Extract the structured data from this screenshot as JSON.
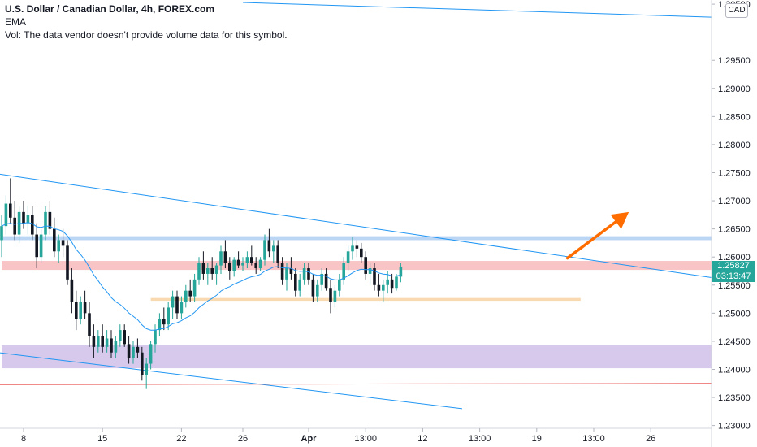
{
  "header": {
    "title": "U.S. Dollar / Canadian Dollar, 4h, FOREX.com",
    "indicator": "EMA",
    "volume_note": "Vol: The data vendor doesn't provide volume data for this symbol."
  },
  "currency_badge": "CAD",
  "last_price": {
    "value": "1.25827",
    "countdown": "03:13:47"
  },
  "colors": {
    "up": "#26a69a",
    "down": "#131722",
    "ema": "#2196f3",
    "trendline": "#2196f3",
    "support_line": "#e53935",
    "arrow": "#ff6d00",
    "zone_blue": "#bbd6f5",
    "zone_red": "#f8c4c6",
    "zone_orange": "#f9d9b0",
    "zone_purple": "#d6c9ec"
  },
  "chart_data": {
    "type": "candlestick",
    "symbol": "USDCAD",
    "timeframe": "4h",
    "ylim": [
      1.2298,
      1.3053
    ],
    "y_ticks": [
      "1.23000",
      "1.23500",
      "1.24000",
      "1.24500",
      "1.25000",
      "1.25500",
      "1.26000",
      "1.26500",
      "1.27000",
      "1.27500",
      "1.28000",
      "1.28500",
      "1.29000",
      "1.29500",
      "1.30500"
    ],
    "x_ticks": [
      {
        "label": "8",
        "i": 5
      },
      {
        "label": "15",
        "i": 23
      },
      {
        "label": "22",
        "i": 41
      },
      {
        "label": "26",
        "i": 55
      },
      {
        "label": "Apr",
        "i": 70
      },
      {
        "label": "13:00",
        "i": 83
      },
      {
        "label": "12",
        "i": 96
      },
      {
        "label": "13:00",
        "i": 109
      },
      {
        "label": "19",
        "i": 122
      },
      {
        "label": "13:00",
        "i": 135
      },
      {
        "label": "26",
        "i": 148
      }
    ],
    "candles": [
      [
        1.263,
        1.2675,
        1.26,
        1.2655
      ],
      [
        1.2655,
        1.271,
        1.264,
        1.2695
      ],
      [
        1.2695,
        1.274,
        1.266,
        1.267
      ],
      [
        1.267,
        1.27,
        1.263,
        1.264
      ],
      [
        1.264,
        1.269,
        1.2625,
        1.268
      ],
      [
        1.268,
        1.27,
        1.265,
        1.266
      ],
      [
        1.266,
        1.269,
        1.264,
        1.2675
      ],
      [
        1.2675,
        1.269,
        1.263,
        1.264
      ],
      [
        1.264,
        1.266,
        1.258,
        1.26
      ],
      [
        1.26,
        1.265,
        1.259,
        1.264
      ],
      [
        1.264,
        1.269,
        1.263,
        1.268
      ],
      [
        1.268,
        1.27,
        1.264,
        1.265
      ],
      [
        1.265,
        1.267,
        1.26,
        1.261
      ],
      [
        1.261,
        1.264,
        1.259,
        1.263
      ],
      [
        1.263,
        1.265,
        1.26,
        1.262
      ],
      [
        1.262,
        1.263,
        1.255,
        1.256
      ],
      [
        1.256,
        1.258,
        1.25,
        1.252
      ],
      [
        1.252,
        1.254,
        1.247,
        1.249
      ],
      [
        1.249,
        1.253,
        1.248,
        1.252
      ],
      [
        1.252,
        1.254,
        1.249,
        1.25
      ],
      [
        1.25,
        1.252,
        1.244,
        1.246
      ],
      [
        1.246,
        1.248,
        1.242,
        1.244
      ],
      [
        1.244,
        1.247,
        1.243,
        1.246
      ],
      [
        1.246,
        1.248,
        1.243,
        1.244
      ],
      [
        1.244,
        1.247,
        1.243,
        1.2455
      ],
      [
        1.2455,
        1.247,
        1.242,
        1.243
      ],
      [
        1.243,
        1.246,
        1.242,
        1.245
      ],
      [
        1.245,
        1.248,
        1.244,
        1.247
      ],
      [
        1.247,
        1.248,
        1.244,
        1.2445
      ],
      [
        1.2445,
        1.246,
        1.241,
        1.242
      ],
      [
        1.242,
        1.245,
        1.241,
        1.244
      ],
      [
        1.244,
        1.2455,
        1.242,
        1.243
      ],
      [
        1.243,
        1.244,
        1.238,
        1.239
      ],
      [
        1.239,
        1.242,
        1.2365,
        1.241
      ],
      [
        1.241,
        1.245,
        1.24,
        1.2445
      ],
      [
        1.2445,
        1.248,
        1.243,
        1.247
      ],
      [
        1.247,
        1.25,
        1.246,
        1.249
      ],
      [
        1.249,
        1.251,
        1.247,
        1.248
      ],
      [
        1.248,
        1.252,
        1.247,
        1.251
      ],
      [
        1.251,
        1.254,
        1.249,
        1.253
      ],
      [
        1.253,
        1.254,
        1.249,
        1.25
      ],
      [
        1.25,
        1.253,
        1.249,
        1.252
      ],
      [
        1.252,
        1.255,
        1.251,
        1.254
      ],
      [
        1.254,
        1.256,
        1.252,
        1.253
      ],
      [
        1.253,
        1.257,
        1.252,
        1.256
      ],
      [
        1.256,
        1.26,
        1.255,
        1.259
      ],
      [
        1.259,
        1.261,
        1.256,
        1.257
      ],
      [
        1.257,
        1.259,
        1.255,
        1.258
      ],
      [
        1.258,
        1.26,
        1.256,
        1.257
      ],
      [
        1.257,
        1.259,
        1.255,
        1.2585
      ],
      [
        1.2585,
        1.262,
        1.257,
        1.261
      ],
      [
        1.261,
        1.263,
        1.258,
        1.259
      ],
      [
        1.259,
        1.26,
        1.256,
        1.2575
      ],
      [
        1.2575,
        1.26,
        1.2565,
        1.2595
      ],
      [
        1.2595,
        1.261,
        1.258,
        1.2585
      ],
      [
        1.2585,
        1.26,
        1.2575,
        1.259
      ],
      [
        1.259,
        1.261,
        1.258,
        1.26
      ],
      [
        1.26,
        1.262,
        1.2585,
        1.259
      ],
      [
        1.259,
        1.26,
        1.257,
        1.258
      ],
      [
        1.258,
        1.26,
        1.2575,
        1.2595
      ],
      [
        1.2595,
        1.264,
        1.2585,
        1.263
      ],
      [
        1.263,
        1.265,
        1.26,
        1.261
      ],
      [
        1.261,
        1.263,
        1.259,
        1.262
      ],
      [
        1.262,
        1.263,
        1.258,
        1.259
      ],
      [
        1.259,
        1.26,
        1.255,
        1.256
      ],
      [
        1.256,
        1.259,
        1.254,
        1.258
      ],
      [
        1.258,
        1.26,
        1.256,
        1.257
      ],
      [
        1.257,
        1.258,
        1.253,
        1.254
      ],
      [
        1.254,
        1.257,
        1.253,
        1.256
      ],
      [
        1.256,
        1.259,
        1.255,
        1.258
      ],
      [
        1.258,
        1.259,
        1.255,
        1.256
      ],
      [
        1.256,
        1.257,
        1.252,
        1.253
      ],
      [
        1.253,
        1.256,
        1.252,
        1.255
      ],
      [
        1.255,
        1.258,
        1.254,
        1.257
      ],
      [
        1.257,
        1.258,
        1.254,
        1.2545
      ],
      [
        1.2545,
        1.256,
        1.25,
        1.252
      ],
      [
        1.252,
        1.255,
        1.251,
        1.254
      ],
      [
        1.254,
        1.257,
        1.253,
        1.256
      ],
      [
        1.256,
        1.26,
        1.255,
        1.259
      ],
      [
        1.259,
        1.262,
        1.2575,
        1.261
      ],
      [
        1.261,
        1.2635,
        1.2595,
        1.262
      ],
      [
        1.262,
        1.263,
        1.26,
        1.2615
      ],
      [
        1.2615,
        1.2625,
        1.259,
        1.26
      ],
      [
        1.26,
        1.261,
        1.256,
        1.257
      ],
      [
        1.257,
        1.259,
        1.255,
        1.258
      ],
      [
        1.258,
        1.259,
        1.254,
        1.255
      ],
      [
        1.255,
        1.257,
        1.253,
        1.254
      ],
      [
        1.254,
        1.256,
        1.252,
        1.255
      ],
      [
        1.255,
        1.2575,
        1.2535,
        1.256
      ],
      [
        1.256,
        1.257,
        1.2535,
        1.2545
      ],
      [
        1.2545,
        1.257,
        1.254,
        1.2565
      ],
      [
        1.2565,
        1.259,
        1.2555,
        1.2583
      ]
    ],
    "zones": [
      {
        "name": "resistance-zone",
        "from": 1.263,
        "to": 1.2637,
        "x0_i": 0,
        "x1_i": 170
      },
      {
        "name": "current-zone",
        "from": 1.2577,
        "to": 1.2593,
        "x0_i": 0,
        "x1_i": 999
      },
      {
        "name": "support-zone",
        "from": 1.2522,
        "to": 1.2527,
        "x0_i": 34,
        "x1_i": 132
      },
      {
        "name": "demand-zone",
        "from": 1.2402,
        "to": 1.2443,
        "x0_i": 0,
        "x1_i": 999
      }
    ],
    "trendlines": [
      {
        "name": "upper-channel-line",
        "p1": [
          55,
          1.3053
        ],
        "p2": [
          999,
          1.2822
        ],
        "color": "trendline"
      },
      {
        "name": "descending-resistance-line",
        "p1": [
          -1,
          1.2748
        ],
        "p2": [
          171,
          1.2553
        ],
        "color": "trendline"
      },
      {
        "name": "lower-channel-line",
        "p1": [
          -1,
          1.243
        ],
        "p2": [
          105,
          1.233
        ],
        "color": "trendline"
      },
      {
        "name": "long-term-support-line",
        "p1": [
          -1,
          1.2373
        ],
        "p2": [
          999,
          1.2384
        ],
        "color": "support_line"
      }
    ],
    "arrow": {
      "from": [
        129,
        1.2598
      ],
      "to": [
        143,
        1.268
      ]
    }
  }
}
